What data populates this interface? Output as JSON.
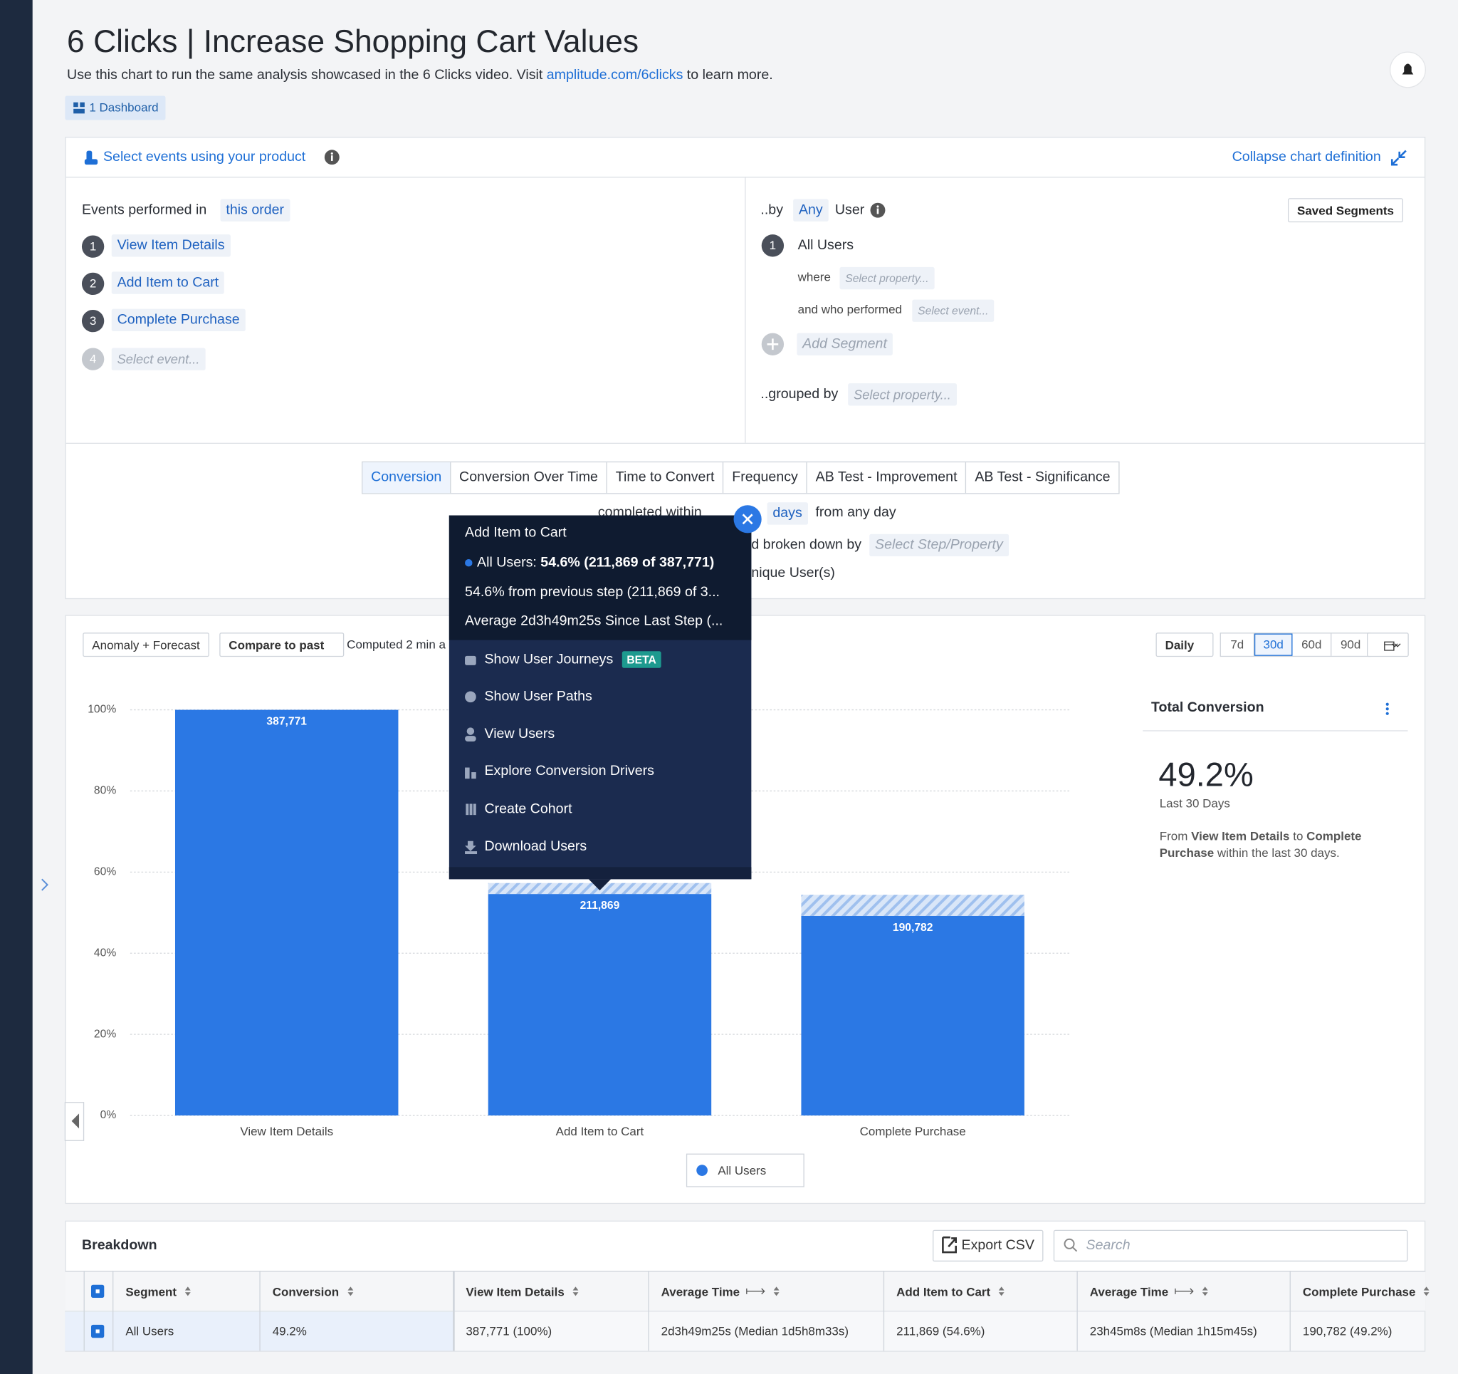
{
  "header": {
    "title": "6 Clicks | Increase Shopping Cart Values",
    "description_before": "Use this chart to run the same analysis showcased in the 6 Clicks video. Visit ",
    "link": "amplitude.com/6clicks",
    "description_after": " to learn more.",
    "dashboard_badge": "1 Dashboard"
  },
  "definition": {
    "select_events": "Select events using your product",
    "collapse": "Collapse chart definition",
    "events_label": "Events performed in",
    "order": "this order",
    "steps": [
      {
        "number": "1",
        "label": "View Item Details"
      },
      {
        "number": "2",
        "label": "Add Item to Cart"
      },
      {
        "number": "3",
        "label": "Complete Purchase"
      },
      {
        "number": "4",
        "label": "Select event..."
      }
    ],
    "by": "..by",
    "any": "Any",
    "user": "User",
    "saved_segments": "Saved Segments",
    "segment_number": "1",
    "segment": "All Users",
    "where": "where",
    "where_placeholder": "Select property...",
    "who_performed": "and who performed",
    "who_placeholder": "Select event...",
    "add_segment": "Add Segment",
    "grouped_by": "..grouped by",
    "grouped_placeholder": "Select property..."
  },
  "tabs": [
    "Conversion",
    "Conversion Over Time",
    "Time to Convert",
    "Frequency",
    "AB Test - Improvement",
    "AB Test - Significance"
  ],
  "settings": {
    "completed_within": "completed within",
    "days": "days",
    "from_any_day": "from any day",
    "broken_down_by": "d broken down by",
    "broken_placeholder": "Select Step/Property",
    "unique_users": "nique User(s)"
  },
  "toolbar": {
    "anomaly": "Anomaly + Forecast",
    "compare": "Compare to past",
    "computed": "Computed 2 min a",
    "interval": "Daily",
    "ranges": [
      "7d",
      "30d",
      "60d",
      "90d"
    ]
  },
  "tooltip": {
    "title": "Add Item to Cart",
    "segment": "All Users: ",
    "segment_value": "54.6% (211,869 of 387,771)",
    "previous": "54.6% from previous step (211,869 of 3...",
    "average": "Average 2d3h49m25s Since Last Step (...",
    "actions": [
      "Show User Journeys",
      "Show User Paths",
      "View Users",
      "Explore Conversion Drivers",
      "Create Cohort",
      "Download Users"
    ],
    "beta": "BETA"
  },
  "summary": {
    "title": "Total Conversion",
    "value": "49.2%",
    "period": "Last 30 Days",
    "from": "From ",
    "from_event": "View Item Details",
    "to": " to ",
    "to_event": "Complete Purchase",
    "suffix": " within the last 30 days."
  },
  "chart_data": {
    "type": "bar",
    "categories": [
      "View Item Details",
      "Add Item to Cart",
      "Complete Purchase"
    ],
    "series": [
      {
        "name": "All Users",
        "color": "#2b78e4",
        "values": [
          100,
          54.6,
          49.2
        ]
      }
    ],
    "count_labels": [
      "387,771",
      "211,869",
      "190,782"
    ],
    "hatched": [
      null,
      2.7,
      5.2
    ],
    "ylim": [
      0,
      100
    ],
    "yticks": [
      {
        "value": 0,
        "label": "0%"
      },
      {
        "value": 20,
        "label": "20%"
      },
      {
        "value": 40,
        "label": "40%"
      },
      {
        "value": 60,
        "label": "60%"
      },
      {
        "value": 80,
        "label": "80%"
      },
      {
        "value": 100,
        "label": "100%"
      }
    ],
    "grid": true
  },
  "breakdown": {
    "title": "Breakdown",
    "export": "Export CSV",
    "search": "Search",
    "columns": [
      "Segment",
      "Conversion",
      "View Item Details",
      "Average Time",
      "Add Item to Cart",
      "Average Time",
      "Complete Purchase"
    ],
    "rows": [
      [
        "All Users",
        "49.2%",
        "387,771 (100%)",
        "2d3h49m25s (Median 1d5h8m33s)",
        "211,869 (54.6%)",
        "23h45m8s (Median 1h15m45s)",
        "190,782 (49.2%)"
      ]
    ]
  }
}
